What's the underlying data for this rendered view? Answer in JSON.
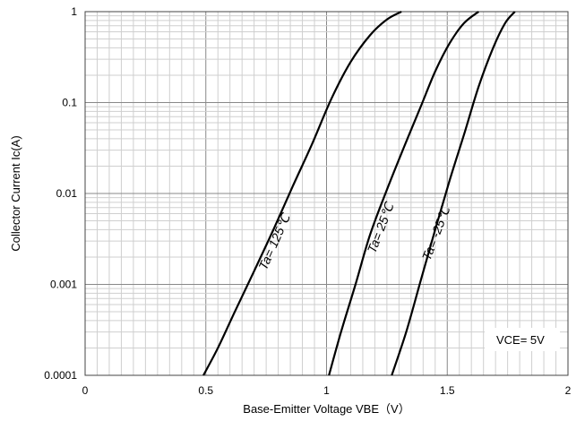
{
  "chart_data": {
    "type": "line",
    "title": "",
    "xlabel": "Base-Emitter Voltage  VBE（V）",
    "ylabel": "Collector Current   Ic(A)",
    "xlim": [
      0,
      2
    ],
    "ylim": [
      0.0001,
      1
    ],
    "y_scale": "log",
    "grid": true,
    "x_ticks": [
      "0",
      "0.5",
      "1",
      "1.5",
      "2"
    ],
    "y_ticks": [
      "0.0001",
      "0.001",
      "0.01",
      "0.1",
      "1"
    ],
    "annotation": "VCE= 5V",
    "series": [
      {
        "name": "Ta= 125℃",
        "color": "#000000",
        "x": [
          0.49,
          0.55,
          0.62,
          0.7,
          0.78,
          0.86,
          0.94,
          1.02,
          1.1,
          1.18,
          1.25,
          1.31
        ],
        "y": [
          0.0001,
          0.0002,
          0.0005,
          0.0014,
          0.004,
          0.012,
          0.035,
          0.11,
          0.28,
          0.55,
          0.82,
          1.0
        ]
      },
      {
        "name": "Ta= 25℃",
        "color": "#000000",
        "x": [
          1.01,
          1.06,
          1.12,
          1.18,
          1.25,
          1.32,
          1.39,
          1.45,
          1.51,
          1.57,
          1.63
        ],
        "y": [
          0.0001,
          0.0003,
          0.001,
          0.0035,
          0.011,
          0.032,
          0.09,
          0.22,
          0.45,
          0.75,
          1.0
        ]
      },
      {
        "name": "Ta= -25℃",
        "color": "#000000",
        "x": [
          1.27,
          1.33,
          1.39,
          1.45,
          1.51,
          1.57,
          1.63,
          1.69,
          1.74,
          1.78
        ],
        "y": [
          0.0001,
          0.0003,
          0.0011,
          0.004,
          0.014,
          0.045,
          0.15,
          0.4,
          0.75,
          1.0
        ]
      }
    ]
  }
}
